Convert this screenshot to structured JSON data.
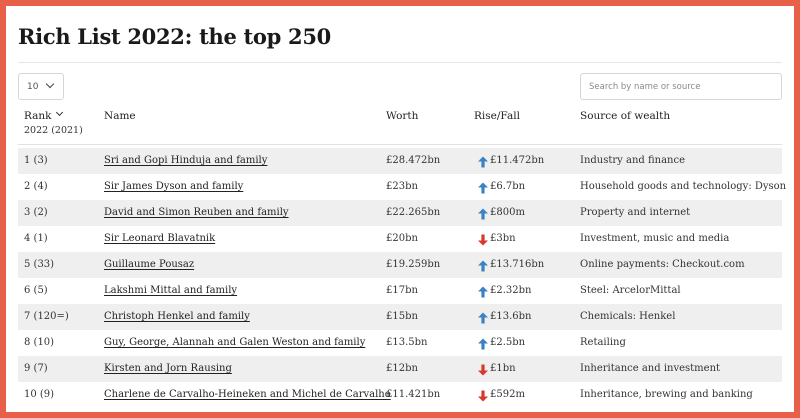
{
  "title": "Rich List 2022: the top 250",
  "page_size": "10",
  "search": {
    "placeholder": "Search by name or source"
  },
  "colors": {
    "border": "#e8604a",
    "up": "#3b82c4",
    "down": "#d63a2b",
    "stripe": "#efefef"
  },
  "columns": {
    "rank": "Rank",
    "rank_sub": "2022 (2021)",
    "name": "Name",
    "worth": "Worth",
    "rise_fall": "Rise/Fall",
    "source": "Source of wealth"
  },
  "rows": [
    {
      "rank": "1 (3)",
      "name": "Sri and Gopi Hinduja and family",
      "worth": "£28.472bn",
      "direction": "up",
      "change": "£11.472bn",
      "source": "Industry and finance"
    },
    {
      "rank": "2 (4)",
      "name": "Sir James Dyson and family",
      "worth": "£23bn",
      "direction": "up",
      "change": "£6.7bn",
      "source": "Household goods and technology: Dyson"
    },
    {
      "rank": "3 (2)",
      "name": "David and Simon Reuben and family",
      "worth": "£22.265bn",
      "direction": "up",
      "change": "£800m",
      "source": "Property and internet"
    },
    {
      "rank": "4 (1)",
      "name": "Sir Leonard Blavatnik",
      "worth": "£20bn",
      "direction": "down",
      "change": "£3bn",
      "source": "Investment, music and media"
    },
    {
      "rank": "5 (33)",
      "name": "Guillaume Pousaz",
      "worth": "£19.259bn",
      "direction": "up",
      "change": "£13.716bn",
      "source": "Online payments: Checkout.com"
    },
    {
      "rank": "6 (5)",
      "name": "Lakshmi Mittal and family",
      "worth": "£17bn",
      "direction": "up",
      "change": "£2.32bn",
      "source": "Steel: ArcelorMittal"
    },
    {
      "rank": "7 (120=)",
      "name": "Christoph Henkel and family",
      "worth": "£15bn",
      "direction": "up",
      "change": "£13.6bn",
      "source": "Chemicals: Henkel"
    },
    {
      "rank": "8 (10)",
      "name": "Guy, George, Alannah and Galen Weston and family",
      "worth": "£13.5bn",
      "direction": "up",
      "change": "£2.5bn",
      "source": "Retailing"
    },
    {
      "rank": "9 (7)",
      "name": "Kirsten and Jorn Rausing",
      "worth": "£12bn",
      "direction": "down",
      "change": "£1bn",
      "source": "Inheritance and investment"
    },
    {
      "rank": "10 (9)",
      "name": "Charlene de Carvalho-Heineken and Michel de Carvalho",
      "worth": "£11.421bn",
      "direction": "down",
      "change": "£592m",
      "source": "Inheritance, brewing and banking"
    }
  ]
}
